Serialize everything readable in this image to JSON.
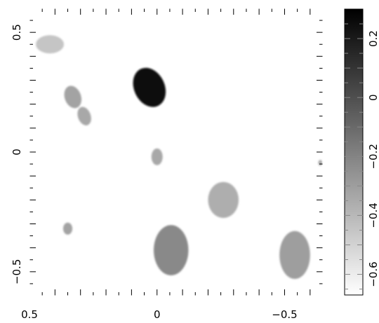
{
  "chart_data": {
    "type": "heatmap",
    "title": "",
    "xlabel": "",
    "ylabel": "",
    "xlim": [
      0.5,
      -0.65
    ],
    "ylim": [
      -0.6,
      0.6
    ],
    "x_ticks": [
      {
        "value": 0.5,
        "label": "0.5"
      },
      {
        "value": 0.0,
        "label": "0"
      },
      {
        "value": -0.5,
        "label": "−0.5"
      }
    ],
    "y_ticks": [
      {
        "value": 0.5,
        "label": "0.5"
      },
      {
        "value": 0.0,
        "label": "0"
      },
      {
        "value": -0.5,
        "label": "−0.5"
      }
    ],
    "colorbar": {
      "min": -0.67,
      "max": 0.3,
      "color_low": "#ffffff",
      "color_high": "#000000",
      "ticks": [
        {
          "value": 0.2,
          "label": "0.2"
        },
        {
          "value": 0.0,
          "label": "0"
        },
        {
          "value": -0.2,
          "label": "−0.2"
        },
        {
          "value": -0.4,
          "label": "−0.4"
        },
        {
          "value": -0.6,
          "label": "−0.6"
        }
      ]
    },
    "blobs": [
      {
        "x": 0.42,
        "y": 0.45,
        "rx": 0.055,
        "ry": 0.038,
        "angle": 0,
        "value": -0.45
      },
      {
        "x": 0.03,
        "y": 0.27,
        "rx": 0.06,
        "ry": 0.085,
        "angle": -25,
        "value": 0.25
      },
      {
        "x": 0.33,
        "y": 0.23,
        "rx": 0.032,
        "ry": 0.048,
        "angle": -20,
        "value": -0.32
      },
      {
        "x": 0.285,
        "y": 0.15,
        "rx": 0.025,
        "ry": 0.04,
        "angle": -20,
        "value": -0.34
      },
      {
        "x": 0.0,
        "y": -0.02,
        "rx": 0.022,
        "ry": 0.035,
        "angle": 0,
        "value": -0.34
      },
      {
        "x": -0.26,
        "y": -0.2,
        "rx": 0.06,
        "ry": 0.075,
        "angle": 0,
        "value": -0.36
      },
      {
        "x": 0.35,
        "y": -0.32,
        "rx": 0.018,
        "ry": 0.025,
        "angle": 0,
        "value": -0.32
      },
      {
        "x": -0.055,
        "y": -0.41,
        "rx": 0.068,
        "ry": 0.105,
        "angle": 0,
        "value": -0.22
      },
      {
        "x": -0.54,
        "y": -0.43,
        "rx": 0.06,
        "ry": 0.1,
        "angle": 0,
        "value": -0.3
      },
      {
        "x": -0.64,
        "y": -0.045,
        "rx": 0.008,
        "ry": 0.012,
        "angle": 0,
        "value": -0.35
      }
    ]
  }
}
